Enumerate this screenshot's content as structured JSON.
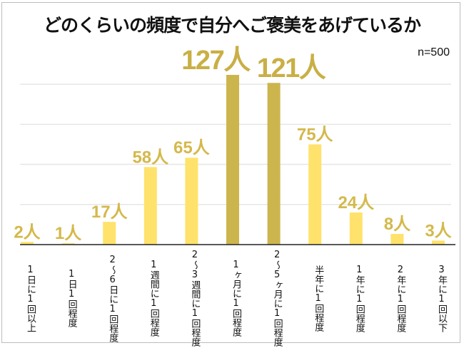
{
  "chart_data": {
    "type": "bar",
    "title": "どのくらいの頻度で自分へご褒美をあげているか",
    "annotation": "n=500",
    "unit": "人",
    "categories": [
      "1日に1回以上",
      "1日1回程度",
      "2～6日に1回程度",
      "1週間に1回程度",
      "2～3週間に1回程度",
      "1ヶ月に1回程度",
      "2～5ヶ月に1回程度",
      "半年に1回程度",
      "1年に1回程度",
      "2年に1回程度",
      "3年に1回以下"
    ],
    "values": [
      2,
      1,
      17,
      58,
      65,
      127,
      121,
      75,
      24,
      8,
      3
    ],
    "data_labels": [
      "2人",
      "1人",
      "17人",
      "58人",
      "65人",
      "127人",
      "121人",
      "75人",
      "24人",
      "8人",
      "3人"
    ],
    "highlight": [
      false,
      false,
      false,
      false,
      false,
      true,
      true,
      false,
      false,
      false,
      false
    ],
    "ylim": [
      0,
      135
    ],
    "gridlines": [
      30,
      60,
      90,
      120
    ],
    "grid": true,
    "colors": {
      "bar": "#FFE26B",
      "highlight": "#CDB54E",
      "label": "#D4B94B",
      "highlight_label": "#C9AF45"
    }
  }
}
